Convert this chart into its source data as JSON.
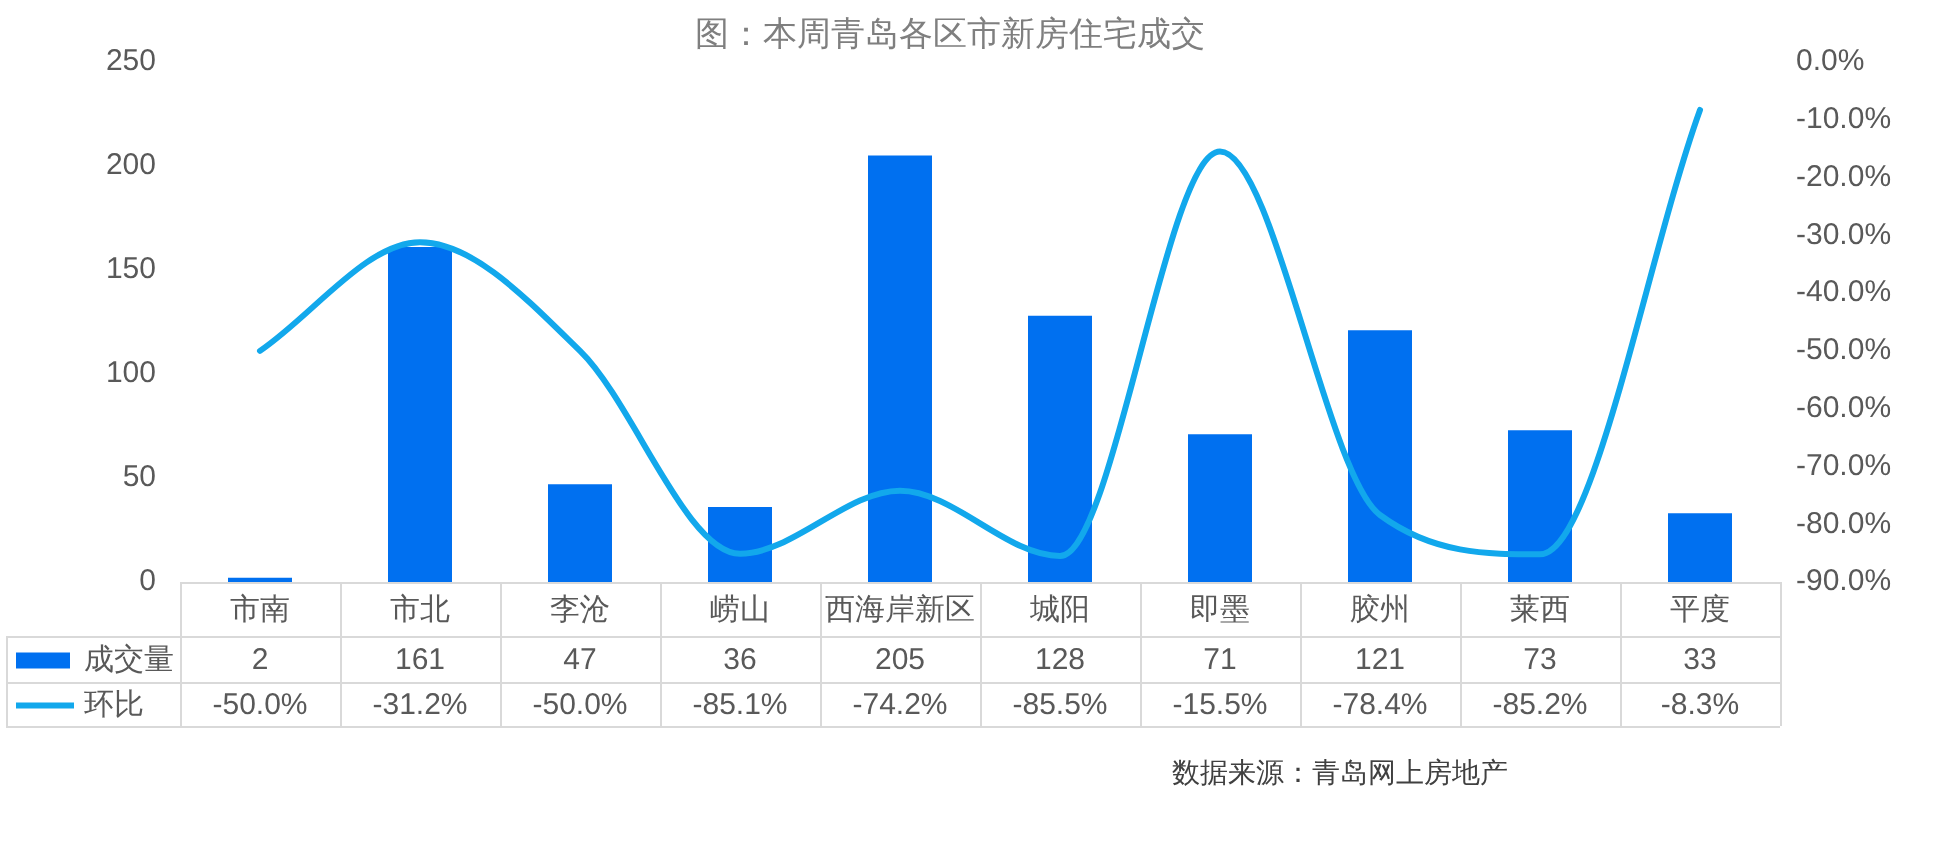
{
  "chart_data": {
    "type": "bar",
    "title": "图：本周青岛各区市新房住宅成交",
    "categories": [
      "市南",
      "市北",
      "李沧",
      "崂山",
      "西海岸新区",
      "城阳",
      "即墨",
      "胶州",
      "莱西",
      "平度"
    ],
    "series": [
      {
        "name": "成交量",
        "color": "#0070f0",
        "values": [
          2,
          161,
          47,
          36,
          205,
          128,
          71,
          121,
          73,
          33
        ],
        "value_labels": [
          "2",
          "161",
          "47",
          "36",
          "205",
          "128",
          "71",
          "121",
          "73",
          "33"
        ]
      },
      {
        "name": "环比",
        "type": "line",
        "axis": "y2",
        "color": "#12a8ec",
        "values": [
          -50.0,
          -31.2,
          -50.0,
          -85.1,
          -74.2,
          -85.5,
          -15.5,
          -78.4,
          -85.2,
          -8.3
        ],
        "value_labels": [
          "-50.0%",
          "-31.2%",
          "-50.0%",
          "-85.1%",
          "-74.2%",
          "-85.5%",
          "-15.5%",
          "-78.4%",
          "-85.2%",
          "-8.3%"
        ]
      }
    ],
    "ylim": [
      0,
      250
    ],
    "yticks": [
      0,
      50,
      100,
      150,
      200,
      250
    ],
    "y2lim": [
      -90,
      0
    ],
    "y2ticks": [
      {
        "value": -90,
        "label": "-90.0%"
      },
      {
        "value": -80,
        "label": "-80.0%"
      },
      {
        "value": -70,
        "label": "-70.0%"
      },
      {
        "value": -60,
        "label": "-60.0%"
      },
      {
        "value": -50,
        "label": "-50.0%"
      },
      {
        "value": -40,
        "label": "-40.0%"
      },
      {
        "value": -30,
        "label": "-30.0%"
      },
      {
        "value": -20,
        "label": "-20.0%"
      },
      {
        "value": -10,
        "label": "-10.0%"
      },
      {
        "value": 0,
        "label": "0.0%"
      }
    ],
    "grid": false,
    "legend": "bottom",
    "annotations": [
      "数据来源：青岛网上房地产"
    ]
  }
}
